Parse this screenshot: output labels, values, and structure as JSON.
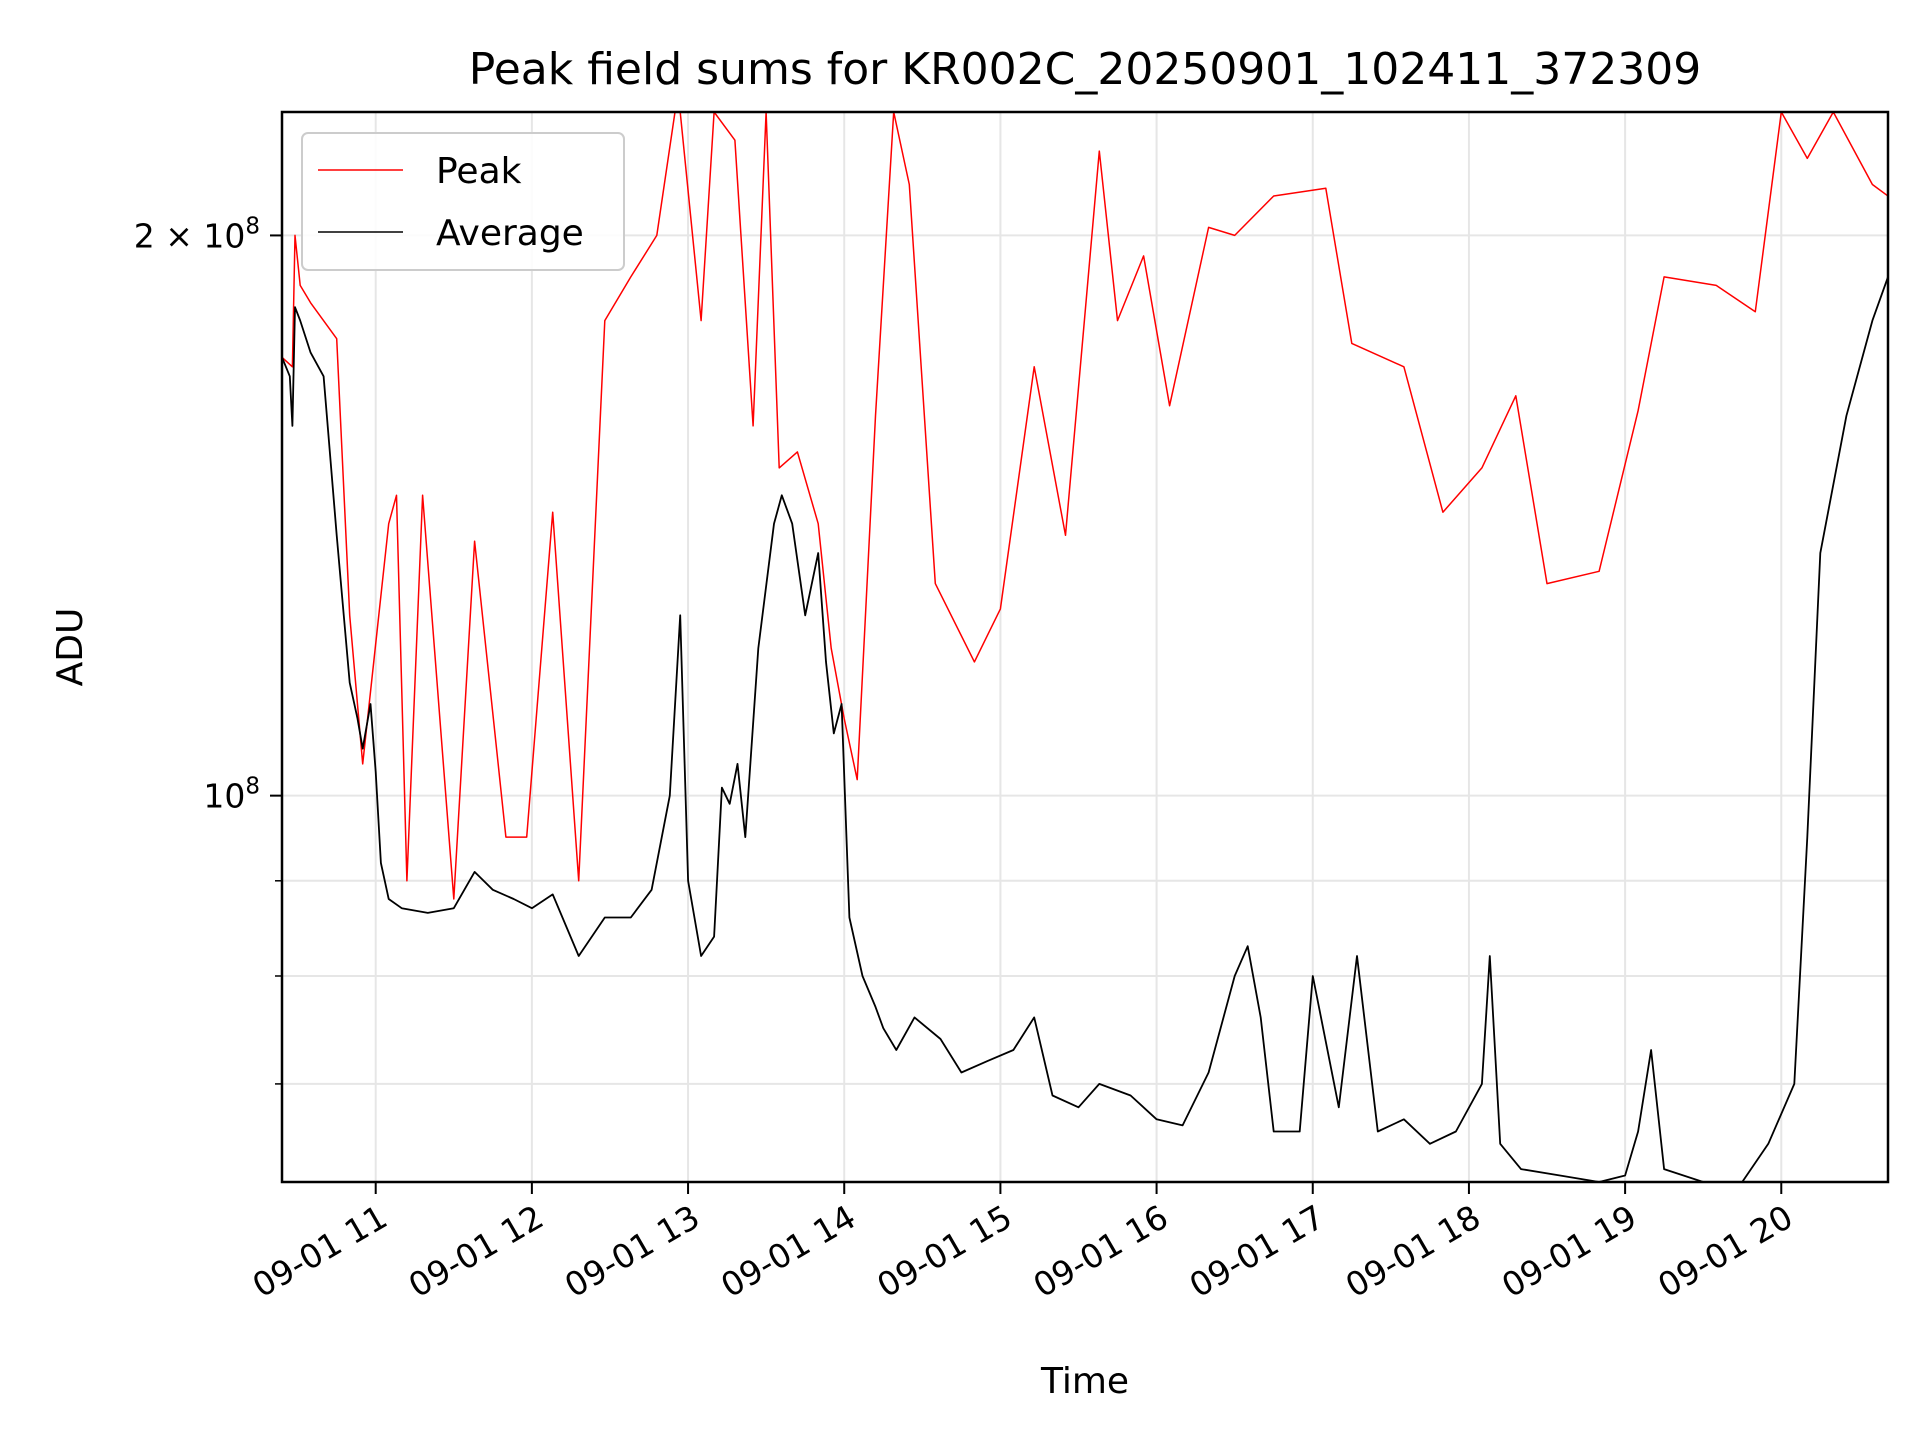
{
  "chart_data": {
    "type": "line",
    "title": "Peak field sums for KR002C_20250901_102411_372309",
    "xlabel": "Time",
    "ylabel": "ADU",
    "y_scale": "log",
    "ylim": [
      62000000,
      233000000
    ],
    "xlim": [
      "2025-09-01 10:24",
      "2025-09-01 20:41"
    ],
    "grid": true,
    "legend_position": "top-left",
    "x_tick_labels": [
      "09-01 11",
      "09-01 12",
      "09-01 13",
      "09-01 14",
      "09-01 15",
      "09-01 16",
      "09-01 17",
      "09-01 18",
      "09-01 19",
      "09-01 20"
    ],
    "x_ticks": [
      "2025-09-01 11:00",
      "2025-09-01 12:00",
      "2025-09-01 13:00",
      "2025-09-01 14:00",
      "2025-09-01 15:00",
      "2025-09-01 16:00",
      "2025-09-01 17:00",
      "2025-09-01 18:00",
      "2025-09-01 19:00",
      "2025-09-01 20:00"
    ],
    "y_major_ticks": [
      {
        "value": 100000000,
        "label_base": "10",
        "label_exp": "8"
      },
      {
        "value": 200000000,
        "label_base": "2 × 10",
        "label_exp": "8"
      }
    ],
    "y_minor_ticks": [
      70000000,
      80000000,
      90000000
    ],
    "series": [
      {
        "name": "Peak",
        "color": "#ff0000",
        "x": [
          "2025-09-01 10:24",
          "2025-09-01 10:28",
          "2025-09-01 10:29",
          "2025-09-01 10:31",
          "2025-09-01 10:35",
          "2025-09-01 10:45",
          "2025-09-01 10:50",
          "2025-09-01 10:55",
          "2025-09-01 11:05",
          "2025-09-01 11:08",
          "2025-09-01 11:12",
          "2025-09-01 11:18",
          "2025-09-01 11:30",
          "2025-09-01 11:38",
          "2025-09-01 11:50",
          "2025-09-01 11:58",
          "2025-09-01 12:08",
          "2025-09-01 12:18",
          "2025-09-01 12:28",
          "2025-09-01 12:38",
          "2025-09-01 12:48",
          "2025-09-01 12:55",
          "2025-09-01 12:57",
          "2025-09-01 13:05",
          "2025-09-01 13:10",
          "2025-09-01 13:18",
          "2025-09-01 13:25",
          "2025-09-01 13:30",
          "2025-09-01 13:35",
          "2025-09-01 13:42",
          "2025-09-01 13:50",
          "2025-09-01 13:55",
          "2025-09-01 14:00",
          "2025-09-01 14:05",
          "2025-09-01 14:12",
          "2025-09-01 14:19",
          "2025-09-01 14:25",
          "2025-09-01 14:35",
          "2025-09-01 14:50",
          "2025-09-01 15:00",
          "2025-09-01 15:13",
          "2025-09-01 15:25",
          "2025-09-01 15:38",
          "2025-09-01 15:45",
          "2025-09-01 15:55",
          "2025-09-01 16:05",
          "2025-09-01 16:20",
          "2025-09-01 16:30",
          "2025-09-01 16:45",
          "2025-09-01 17:05",
          "2025-09-01 17:15",
          "2025-09-01 17:35",
          "2025-09-01 17:50",
          "2025-09-01 18:05",
          "2025-09-01 18:18",
          "2025-09-01 18:30",
          "2025-09-01 18:50",
          "2025-09-01 19:05",
          "2025-09-01 19:15",
          "2025-09-01 19:35",
          "2025-09-01 19:50",
          "2025-09-01 20:00",
          "2025-09-01 20:10",
          "2025-09-01 20:20",
          "2025-09-01 20:35",
          "2025-09-01 20:41"
        ],
        "values": [
          172000000,
          170000000,
          200000000,
          188000000,
          184000000,
          176000000,
          125000000,
          104000000,
          140000000,
          145000000,
          90000000,
          145000000,
          88000000,
          137000000,
          95000000,
          95000000,
          142000000,
          90000000,
          180000000,
          190000000,
          200000000,
          233000000,
          233000000,
          180000000,
          233000000,
          225000000,
          158000000,
          233000000,
          150000000,
          153000000,
          140000000,
          120000000,
          110000000,
          102000000,
          160000000,
          233000000,
          213000000,
          130000000,
          118000000,
          126000000,
          170000000,
          138000000,
          222000000,
          180000000,
          195000000,
          162000000,
          202000000,
          200000000,
          210000000,
          212000000,
          175000000,
          170000000,
          142000000,
          150000000,
          164000000,
          130000000,
          132000000,
          161000000,
          190000000,
          188000000,
          182000000,
          233000000,
          220000000,
          233000000,
          213000000,
          210000000
        ]
      },
      {
        "name": "Average",
        "color": "#000000",
        "x": [
          "2025-09-01 10:24",
          "2025-09-01 10:27",
          "2025-09-01 10:28",
          "2025-09-01 10:29",
          "2025-09-01 10:31",
          "2025-09-01 10:35",
          "2025-09-01 10:40",
          "2025-09-01 10:45",
          "2025-09-01 10:50",
          "2025-09-01 10:53",
          "2025-09-01 10:55",
          "2025-09-01 10:58",
          "2025-09-01 11:00",
          "2025-09-01 11:02",
          "2025-09-01 11:05",
          "2025-09-01 11:10",
          "2025-09-01 11:20",
          "2025-09-01 11:30",
          "2025-09-01 11:38",
          "2025-09-01 11:45",
          "2025-09-01 11:53",
          "2025-09-01 12:00",
          "2025-09-01 12:08",
          "2025-09-01 12:18",
          "2025-09-01 12:28",
          "2025-09-01 12:38",
          "2025-09-01 12:46",
          "2025-09-01 12:53",
          "2025-09-01 12:57",
          "2025-09-01 13:00",
          "2025-09-01 13:05",
          "2025-09-01 13:10",
          "2025-09-01 13:13",
          "2025-09-01 13:16",
          "2025-09-01 13:19",
          "2025-09-01 13:22",
          "2025-09-01 13:27",
          "2025-09-01 13:33",
          "2025-09-01 13:36",
          "2025-09-01 13:40",
          "2025-09-01 13:45",
          "2025-09-01 13:50",
          "2025-09-01 13:53",
          "2025-09-01 13:56",
          "2025-09-01 13:59",
          "2025-09-01 14:02",
          "2025-09-01 14:07",
          "2025-09-01 14:12",
          "2025-09-01 14:15",
          "2025-09-01 14:20",
          "2025-09-01 14:27",
          "2025-09-01 14:37",
          "2025-09-01 14:45",
          "2025-09-01 14:55",
          "2025-09-01 15:05",
          "2025-09-01 15:13",
          "2025-09-01 15:20",
          "2025-09-01 15:30",
          "2025-09-01 15:38",
          "2025-09-01 15:50",
          "2025-09-01 16:00",
          "2025-09-01 16:10",
          "2025-09-01 16:20",
          "2025-09-01 16:30",
          "2025-09-01 16:35",
          "2025-09-01 16:40",
          "2025-09-01 16:45",
          "2025-09-01 16:55",
          "2025-09-01 17:00",
          "2025-09-01 17:10",
          "2025-09-01 17:17",
          "2025-09-01 17:25",
          "2025-09-01 17:35",
          "2025-09-01 17:45",
          "2025-09-01 17:55",
          "2025-09-01 18:05",
          "2025-09-01 18:08",
          "2025-09-01 18:12",
          "2025-09-01 18:20",
          "2025-09-01 18:35",
          "2025-09-01 18:50",
          "2025-09-01 19:00",
          "2025-09-01 19:05",
          "2025-09-01 19:10",
          "2025-09-01 19:15",
          "2025-09-01 19:30",
          "2025-09-01 19:45",
          "2025-09-01 19:55",
          "2025-09-01 20:05",
          "2025-09-01 20:10",
          "2025-09-01 20:15",
          "2025-09-01 20:25",
          "2025-09-01 20:35",
          "2025-09-01 20:41"
        ],
        "values": [
          172000000,
          168000000,
          158000000,
          183000000,
          180000000,
          173000000,
          168000000,
          138000000,
          115000000,
          110000000,
          106000000,
          112000000,
          103000000,
          92000000,
          88000000,
          87000000,
          86500000,
          87000000,
          91000000,
          89000000,
          88000000,
          87000000,
          88500000,
          82000000,
          86000000,
          86000000,
          89000000,
          100000000,
          125000000,
          90000000,
          82000000,
          84000000,
          101000000,
          99000000,
          104000000,
          95000000,
          120000000,
          140000000,
          145000000,
          140000000,
          125000000,
          135000000,
          118000000,
          108000000,
          112000000,
          86000000,
          80000000,
          77000000,
          75000000,
          73000000,
          76000000,
          74000000,
          71000000,
          72000000,
          73000000,
          76000000,
          69000000,
          68000000,
          70000000,
          69000000,
          67000000,
          66500000,
          71000000,
          80000000,
          83000000,
          76000000,
          66000000,
          66000000,
          80000000,
          68000000,
          82000000,
          66000000,
          67000000,
          65000000,
          66000000,
          70000000,
          82000000,
          65000000,
          63000000,
          62500000,
          62000000,
          62500000,
          66000000,
          73000000,
          63000000,
          62000000,
          62000000,
          65000000,
          70000000,
          95000000,
          135000000,
          160000000,
          180000000,
          190000000
        ]
      }
    ]
  }
}
